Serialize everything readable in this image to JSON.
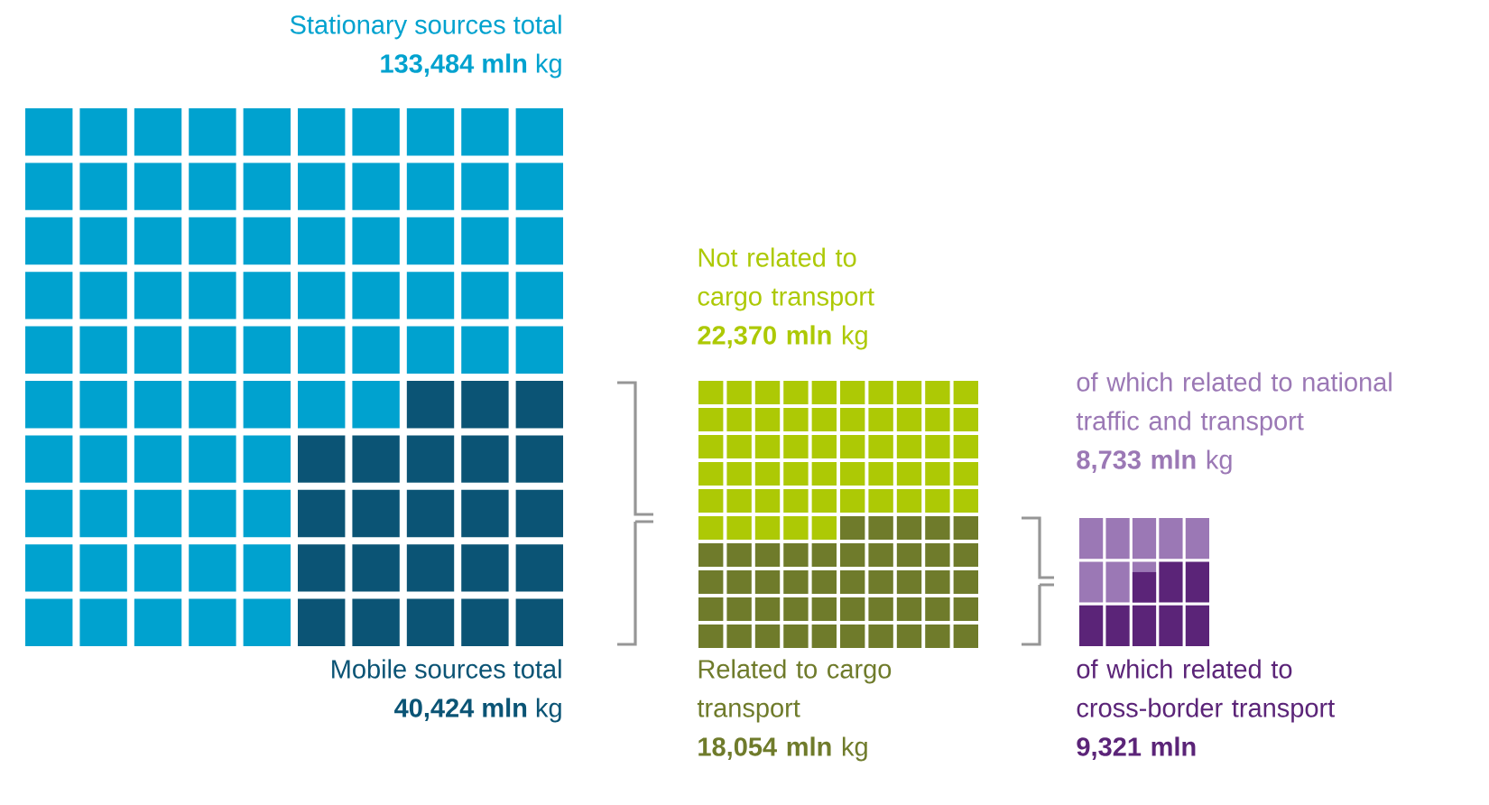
{
  "chart_data": [
    {
      "type": "other",
      "categories": [
        "Stationary sources total",
        "Mobile sources total"
      ],
      "values": [
        133484,
        40424
      ],
      "colors": [
        "#00a2cf",
        "#0b5475"
      ],
      "value_labels": [
        "**133,484 mln** kg",
        "**40,424 mln** kg"
      ]
    },
    {
      "type": "other",
      "categories": [
        "Not related to cargo transport",
        "Related to cargo transport"
      ],
      "values": [
        22370,
        18054
      ],
      "colors": [
        "#adc905",
        "#6f7b2b"
      ],
      "value_labels": [
        "**22,370 mln** kg",
        "**18,054 mln** kg"
      ]
    },
    {
      "type": "other",
      "categories": [
        "of which related to national traffic and transport",
        "of which related to cross-border transport"
      ],
      "values": [
        8733,
        9321
      ],
      "colors": [
        "#9b78b5",
        "#5b2478"
      ],
      "value_labels": [
        "**8,733 mln** kg",
        "**9,321 mln**"
      ]
    }
  ]
}
